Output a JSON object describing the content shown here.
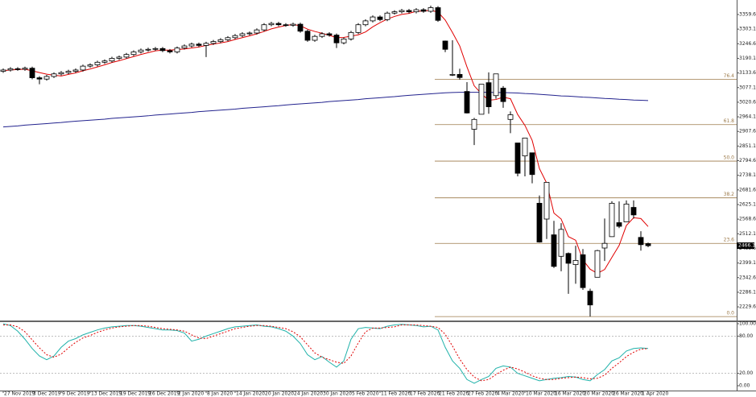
{
  "chart_data": [
    {
      "type": "candlestick",
      "categories": [
        "27 Nov 2019",
        null,
        null,
        null,
        "3 Dec 2019",
        null,
        null,
        null,
        "9 Dec 2019",
        null,
        null,
        null,
        "13 Dec 2019",
        null,
        null,
        null,
        "19 Dec 2019",
        null,
        null,
        null,
        "26 Dec 2019",
        null,
        null,
        null,
        "2 Jan 2020",
        null,
        null,
        null,
        "8 Jan 2020",
        null,
        null,
        null,
        "14 Jan 2020",
        null,
        null,
        null,
        "20 Jan 2020",
        null,
        null,
        null,
        "24 Jan 2020",
        null,
        null,
        null,
        "30 Jan 2020",
        null,
        null,
        null,
        "5 Feb 2020",
        null,
        null,
        null,
        "11 Feb 2020",
        null,
        null,
        null,
        "17 Feb 2020",
        null,
        null,
        null,
        "21 Feb 2020",
        null,
        null,
        null,
        "27 Feb 2020",
        null,
        null,
        null,
        "4 Mar 2020",
        null,
        null,
        null,
        "10 Mar 2020",
        null,
        null,
        null,
        "16 Mar 2020",
        null,
        null,
        null,
        "20 Mar 2020",
        null,
        null,
        null,
        "26 Mar 2020",
        null,
        null,
        null,
        "1 Apr 2020",
        null
      ],
      "open": [
        3140,
        3145,
        3150,
        3148,
        3152,
        3115,
        3110,
        3120,
        3130,
        3135,
        3140,
        3145,
        3160,
        3165,
        3175,
        3180,
        3190,
        3195,
        3205,
        3215,
        3222,
        3225,
        3228,
        3220,
        3215,
        3230,
        3238,
        3245,
        3240,
        3248,
        3255,
        3262,
        3270,
        3278,
        3285,
        3288,
        3300,
        3320,
        3325,
        3320,
        3318,
        3322,
        3295,
        3260,
        3275,
        3285,
        3280,
        3250,
        3265,
        3290,
        3320,
        3335,
        3350,
        3340,
        3365,
        3370,
        3375,
        3370,
        3378,
        3372,
        3386,
        3257,
        3128,
        3128,
        3062,
        2916,
        2974,
        3096,
        3046,
        3075,
        2954,
        2863,
        2813,
        2825,
        2630,
        2569,
        2508,
        2425,
        2436,
        2393,
        2431,
        2290,
        2344,
        2457,
        2501,
        2555,
        2558,
        2614,
        2498,
        2474
      ],
      "high": [
        3151,
        3156,
        3156,
        3158,
        3158,
        3121,
        3126,
        3136,
        3141,
        3146,
        3151,
        3166,
        3171,
        3181,
        3186,
        3196,
        3201,
        3211,
        3221,
        3228,
        3231,
        3234,
        3234,
        3226,
        3236,
        3244,
        3251,
        3251,
        3254,
        3261,
        3268,
        3276,
        3284,
        3291,
        3294,
        3306,
        3326,
        3331,
        3331,
        3326,
        3328,
        3328,
        3301,
        3281,
        3291,
        3291,
        3286,
        3271,
        3296,
        3326,
        3341,
        3356,
        3356,
        3371,
        3376,
        3381,
        3381,
        3384,
        3384,
        3394,
        3392,
        3259,
        3260,
        3150,
        3098,
        2960,
        3090,
        3136,
        3130,
        3083,
        2985,
        2863,
        2883,
        2825,
        2660,
        2711,
        2562,
        2553,
        2440,
        2466,
        2453,
        2300,
        2450,
        2571,
        2638,
        2637,
        2641,
        2641,
        2522,
        2478
      ],
      "low": [
        3134,
        3139,
        3142,
        3142,
        3109,
        3090,
        3104,
        3114,
        3124,
        3129,
        3134,
        3139,
        3154,
        3159,
        3169,
        3174,
        3184,
        3189,
        3199,
        3209,
        3216,
        3219,
        3214,
        3209,
        3209,
        3224,
        3232,
        3234,
        3195,
        3242,
        3249,
        3256,
        3264,
        3272,
        3279,
        3282,
        3294,
        3314,
        3314,
        3312,
        3312,
        3289,
        3254,
        3254,
        3269,
        3274,
        3230,
        3244,
        3259,
        3284,
        3314,
        3329,
        3334,
        3334,
        3359,
        3364,
        3364,
        3364,
        3366,
        3366,
        3331,
        3214,
        3122,
        3108,
        2977,
        2855,
        2977,
        2976,
        3034,
        2999,
        2901,
        2734,
        2734,
        2707,
        2478,
        2492,
        2380,
        2367,
        2280,
        2319,
        2295,
        2192,
        2344,
        2407,
        2500,
        2534,
        2558,
        2571,
        2447,
        2460
      ],
      "close": [
        3145,
        3150,
        3148,
        3152,
        3115,
        3110,
        3120,
        3130,
        3135,
        3140,
        3145,
        3160,
        3165,
        3175,
        3180,
        3190,
        3195,
        3205,
        3215,
        3222,
        3225,
        3228,
        3220,
        3215,
        3230,
        3238,
        3245,
        3240,
        3248,
        3255,
        3262,
        3270,
        3278,
        3285,
        3288,
        3300,
        3320,
        3325,
        3320,
        3318,
        3322,
        3295,
        3260,
        3275,
        3285,
        3280,
        3250,
        3265,
        3290,
        3320,
        3335,
        3350,
        3340,
        3365,
        3370,
        3375,
        3370,
        3378,
        3372,
        3386,
        3337,
        3225,
        3128,
        3116,
        2979,
        2954,
        3090,
        3003,
        3130,
        3023,
        2972,
        2746,
        2882,
        2741,
        2480,
        2711,
        2386,
        2529,
        2398,
        2409,
        2304,
        2237,
        2447,
        2475,
        2630,
        2541,
        2627,
        2585,
        2470,
        2466
      ],
      "series": [
        {
          "color": "#e00000",
          "values": [
            3143,
            3145,
            3147,
            3148,
            3142,
            3135,
            3129,
            3125,
            3122,
            3128,
            3134,
            3142,
            3149,
            3157,
            3165,
            3174,
            3181,
            3189,
            3197,
            3205,
            3212,
            3219,
            3222,
            3222,
            3224,
            3226,
            3230,
            3234,
            3240,
            3245,
            3250,
            3255,
            3263,
            3270,
            3277,
            3285,
            3294,
            3304,
            3311,
            3317,
            3321,
            3316,
            3303,
            3294,
            3287,
            3279,
            3270,
            3271,
            3276,
            3281,
            3292,
            3312,
            3328,
            3342,
            3352,
            3360,
            3364,
            3372,
            3373,
            3376,
            3369,
            3338,
            3290,
            3238,
            3157,
            3084,
            3053,
            3028,
            3031,
            3040,
            3034,
            2973,
            2931,
            2873,
            2764,
            2708,
            2592,
            2569,
            2501,
            2487,
            2411,
            2375,
            2359,
            2374,
            2421,
            2467,
            2544,
            2574,
            2571,
            2540
          ]
        },
        {
          "color": "#23238e",
          "values": [
            2925,
            2927,
            2929,
            2932,
            2934,
            2936,
            2938,
            2940,
            2942,
            2945,
            2947,
            2949,
            2951,
            2953,
            2955,
            2958,
            2960,
            2962,
            2964,
            2966,
            2968,
            2971,
            2973,
            2975,
            2977,
            2979,
            2981,
            2984,
            2986,
            2988,
            2990,
            2992,
            2994,
            2997,
            2999,
            3001,
            3003,
            3005,
            3007,
            3010,
            3012,
            3014,
            3016,
            3018,
            3020,
            3023,
            3025,
            3027,
            3029,
            3031,
            3034,
            3036,
            3038,
            3040,
            3042,
            3045,
            3047,
            3049,
            3051,
            3053,
            3055,
            3057,
            3058,
            3059,
            3059,
            3059,
            3059,
            3059,
            3058,
            3058,
            3057,
            3056,
            3054,
            3053,
            3051,
            3049,
            3047,
            3045,
            3044,
            3042,
            3040,
            3039,
            3037,
            3035,
            3034,
            3032,
            3031,
            3029,
            3028,
            3027
          ]
        }
      ],
      "fib": {
        "color": "#9c7a4a",
        "levels": [
          {
            "label": "76.4",
            "value": 3109
          },
          {
            "label": "61.8",
            "value": 2934
          },
          {
            "label": "50.0",
            "value": 2793
          },
          {
            "label": "38.2",
            "value": 2651
          },
          {
            "label": "23.6",
            "value": 2475
          },
          {
            "label": "0.0",
            "value": 2192
          }
        ]
      },
      "last_price": 2466.1,
      "ylim": [
        2180,
        3415.6
      ],
      "yticks": [
        3359.6,
        3303.1,
        3246.6,
        3190.1,
        3133.6,
        3077.1,
        3020.6,
        2964.1,
        2907.6,
        2851.1,
        2794.6,
        2738.1,
        2681.6,
        2625.1,
        2568.6,
        2512.1,
        2455.6,
        2399.1,
        2342.6,
        2286.1,
        2229.6
      ]
    },
    {
      "type": "line",
      "series": [
        {
          "color": "#20b2aa",
          "dash": false,
          "values": [
            100,
            97,
            88,
            75,
            60,
            48,
            42,
            48,
            62,
            72,
            76,
            82,
            86,
            90,
            93,
            95,
            96,
            97,
            97,
            96,
            94,
            92,
            90,
            90,
            89,
            85,
            72,
            75,
            80,
            84,
            88,
            92,
            95,
            96,
            97,
            98,
            96,
            95,
            92,
            88,
            80,
            68,
            50,
            42,
            47,
            38,
            30,
            40,
            75,
            92,
            94,
            93,
            92,
            96,
            98,
            99,
            98,
            97,
            95,
            96,
            90,
            62,
            40,
            28,
            10,
            4,
            10,
            15,
            28,
            32,
            30,
            20,
            16,
            12,
            8,
            10,
            12,
            13,
            15,
            14,
            10,
            8,
            18,
            26,
            40,
            45,
            56,
            60,
            61,
            60
          ]
        },
        {
          "color": "#e00000",
          "dash": true,
          "values": [
            98,
            98,
            95,
            87,
            74,
            61,
            50,
            46,
            51,
            61,
            70,
            77,
            81,
            86,
            90,
            93,
            95,
            96,
            97,
            97,
            96,
            94,
            92,
            91,
            90,
            88,
            82,
            77,
            76,
            80,
            84,
            88,
            92,
            94,
            96,
            97,
            97,
            96,
            94,
            92,
            87,
            79,
            66,
            53,
            46,
            42,
            38,
            36,
            48,
            69,
            87,
            93,
            93,
            94,
            95,
            98,
            98,
            98,
            97,
            96,
            94,
            83,
            64,
            43,
            26,
            14,
            8,
            10,
            18,
            25,
            30,
            27,
            22,
            16,
            12,
            10,
            10,
            12,
            13,
            14,
            13,
            11,
            12,
            17,
            28,
            37,
            47,
            54,
            59,
            60
          ]
        }
      ],
      "levels": [
        80,
        20
      ],
      "ylim": [
        0,
        100
      ],
      "yticks": [
        {
          "value": 100,
          "label": "100.00"
        },
        {
          "value": 80,
          "label": "80.00"
        },
        {
          "value": 20,
          "label": "20.00"
        },
        {
          "value": 0,
          "label": "0.00"
        }
      ]
    }
  ]
}
